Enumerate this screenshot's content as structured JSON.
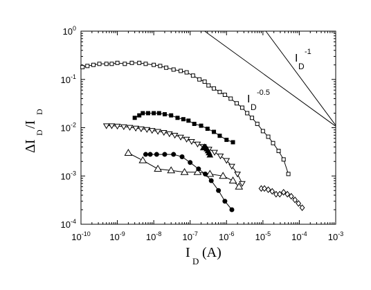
{
  "chart_data": {
    "type": "scatter",
    "title": "",
    "xscale": "log",
    "yscale": "log",
    "xlim": [
      1e-10,
      0.001
    ],
    "ylim": [
      0.0001,
      1
    ],
    "grid": false,
    "xlabel": {
      "main": "I",
      "sub": "D",
      "unit": "(A)"
    },
    "ylabel": {
      "main": "ΔI",
      "sub1": "D",
      "mid": "/I",
      "sub2": "D"
    },
    "x_ticks": [
      {
        "value": 1e-10,
        "base": "10",
        "exp": "-10"
      },
      {
        "value": 1e-09,
        "base": "10",
        "exp": "-9"
      },
      {
        "value": 1e-08,
        "base": "10",
        "exp": "-8"
      },
      {
        "value": 1e-07,
        "base": "10",
        "exp": "-7"
      },
      {
        "value": 1e-06,
        "base": "10",
        "exp": "-6"
      },
      {
        "value": 1e-05,
        "base": "10",
        "exp": "-5"
      },
      {
        "value": 0.0001,
        "base": "10",
        "exp": "-4"
      },
      {
        "value": 0.001,
        "base": "10",
        "exp": "-3"
      }
    ],
    "y_ticks": [
      {
        "value": 1,
        "base": "10",
        "exp": "0"
      },
      {
        "value": 0.1,
        "base": "10",
        "exp": "-1"
      },
      {
        "value": 0.01,
        "base": "10",
        "exp": "-2"
      },
      {
        "value": 0.001,
        "base": "10",
        "exp": "-3"
      },
      {
        "value": 0.0001,
        "base": "10",
        "exp": "-4"
      }
    ],
    "reference_lines": [
      {
        "label_main": "I",
        "label_sub": "D",
        "label_exp": "-0.5",
        "x": [
          2.5e-07,
          0.001
        ],
        "y": [
          1,
          0.0107
        ]
      },
      {
        "label_main": "I",
        "label_sub": "D",
        "label_exp": "-1",
        "x": [
          1.2e-05,
          0.001
        ],
        "y": [
          1,
          0.0112
        ]
      }
    ],
    "series": [
      {
        "marker": "square-open",
        "size": 5,
        "x": [
          1.1e-10,
          1.5e-10,
          2.2e-10,
          3.2e-10,
          5e-10,
          7e-10,
          1e-09,
          1.6e-09,
          2.5e-09,
          4e-09,
          6e-09,
          1e-08,
          1.5e-08,
          2.2e-08,
          3.5e-08,
          5.5e-08,
          8e-08,
          1.2e-07,
          1.8e-07,
          2.5e-07,
          3.2e-07,
          4.5e-07,
          6.5e-07,
          9e-07,
          1.3e-06,
          1.9e-06,
          2.7e-06,
          3.7e-06,
          5e-06,
          7e-06,
          1e-05,
          1.4e-05,
          1.9e-05,
          2.7e-05,
          3.7e-05,
          5e-05
        ],
        "y": [
          0.18,
          0.19,
          0.2,
          0.21,
          0.21,
          0.21,
          0.22,
          0.21,
          0.22,
          0.22,
          0.21,
          0.2,
          0.19,
          0.175,
          0.16,
          0.15,
          0.14,
          0.12,
          0.1,
          0.09,
          0.075,
          0.065,
          0.055,
          0.048,
          0.04,
          0.032,
          0.026,
          0.02,
          0.016,
          0.012,
          0.0085,
          0.0065,
          0.0048,
          0.0033,
          0.0022,
          0.0011
        ]
      },
      {
        "marker": "square-filled",
        "size": 5,
        "x": [
          3e-09,
          4e-09,
          5e-09,
          7e-09,
          1e-08,
          1.4e-08,
          2e-08,
          3e-08,
          4.5e-08,
          6.5e-08,
          9e-08,
          1.3e-07,
          2e-07,
          3e-07,
          4.5e-07,
          6.5e-07,
          1e-06,
          1.5e-06
        ],
        "y": [
          0.016,
          0.018,
          0.02,
          0.02,
          0.02,
          0.02,
          0.019,
          0.018,
          0.016,
          0.015,
          0.014,
          0.012,
          0.011,
          0.0095,
          0.0082,
          0.0068,
          0.0056,
          0.005
        ]
      },
      {
        "marker": "triangle-down-open",
        "size": 4,
        "x": [
          5e-10,
          7e-10,
          1e-09,
          1.5e-09,
          2.2e-09,
          3.2e-09,
          4.5e-09,
          6.5e-09,
          9e-09,
          1.3e-08,
          1.9e-08,
          2.7e-08,
          3.8e-08,
          5.5e-08,
          8e-08,
          1.1e-07,
          1.6e-07,
          2.3e-07,
          3.3e-07,
          4.7e-07,
          6.8e-07,
          1e-06,
          1.4e-06,
          2e-06,
          2.7e-06
        ],
        "y": [
          0.011,
          0.011,
          0.0108,
          0.0105,
          0.0102,
          0.0098,
          0.0095,
          0.0092,
          0.0088,
          0.0084,
          0.008,
          0.0075,
          0.007,
          0.0064,
          0.0058,
          0.0052,
          0.0046,
          0.0041,
          0.0036,
          0.0031,
          0.0026,
          0.0021,
          0.0016,
          0.0011,
          0.0007
        ]
      },
      {
        "marker": "triangle-up-open",
        "size": 5,
        "x": [
          2e-09,
          5e-09,
          1.3e-08,
          3e-08,
          7e-08,
          1.6e-07,
          3.5e-07,
          8e-07,
          1.5e-06,
          2.2e-06
        ],
        "y": [
          0.003,
          0.0021,
          0.0014,
          0.0013,
          0.0012,
          0.0012,
          0.0011,
          0.001,
          0.0008,
          0.0006
        ]
      },
      {
        "marker": "circle-filled",
        "size": 5,
        "x": [
          6e-09,
          8e-09,
          1.2e-08,
          2e-08,
          3.5e-08,
          6e-08,
          1e-07,
          1.7e-07,
          2.6e-07,
          3.8e-07,
          6e-07,
          9e-07,
          1.4e-06
        ],
        "y": [
          0.0028,
          0.0028,
          0.0028,
          0.0028,
          0.0028,
          0.0025,
          0.0019,
          0.0014,
          0.0011,
          0.0008,
          0.0005,
          0.0003,
          0.0002
        ]
      },
      {
        "marker": "triangle-up-filled",
        "size": 4,
        "x": [
          2.3e-07,
          2.5e-07,
          2.7e-07,
          2.9e-07,
          3.1e-07,
          3.3e-07,
          3.5e-07
        ],
        "y": [
          0.0038,
          0.004,
          0.0039,
          0.0036,
          0.0033,
          0.003,
          0.0027
        ]
      },
      {
        "marker": "diamond-open",
        "size": 4,
        "x": [
          9e-06,
          1.1e-05,
          1.4e-05,
          1.8e-05,
          2.3e-05,
          2.9e-05,
          3.7e-05,
          4.7e-05,
          6e-05,
          7.6e-05,
          9.5e-05,
          0.00012
        ],
        "y": [
          0.00055,
          0.00055,
          0.00052,
          0.00048,
          0.00042,
          0.00042,
          0.00046,
          0.00042,
          0.00038,
          0.00032,
          0.00027,
          0.00022
        ]
      }
    ]
  }
}
